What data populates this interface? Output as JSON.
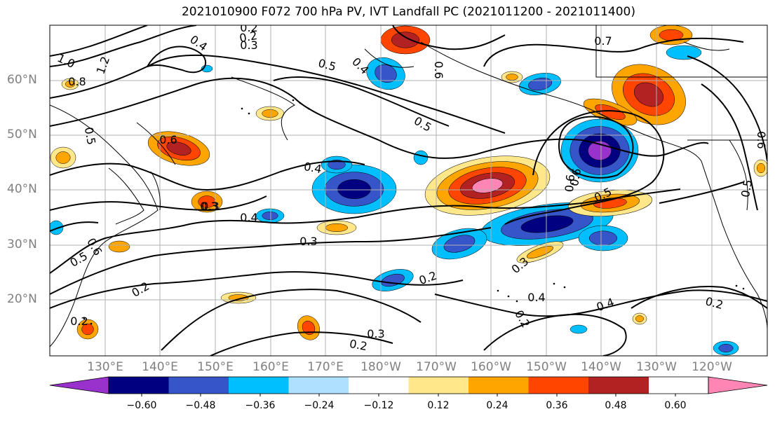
{
  "title": "2021010900 F072 700 hPa PV, IVT Landfall PC (2021011200 - 2021011400)",
  "lat_labels": [
    "60°N",
    "50°N",
    "40°N",
    "30°N",
    "20°N"
  ],
  "lon_labels": [
    "130°E",
    "140°E",
    "150°E",
    "160°E",
    "170°E",
    "180°W",
    "170°W",
    "160°W",
    "150°W",
    "140°W",
    "130°W",
    "120°W"
  ],
  "colorbar": {
    "ticks": [
      "−0.60",
      "−0.48",
      "−0.36",
      "−0.24",
      "−0.12",
      "0.12",
      "0.24",
      "0.36",
      "0.48",
      "0.60"
    ],
    "colors": [
      "#9932cc",
      "#000080",
      "#3655c8",
      "#00bfff",
      "#b0e0ff",
      "#ffffff",
      "#ffe78a",
      "#ffa500",
      "#ff4500",
      "#b22222",
      "#ff85b4"
    ]
  },
  "contour_labels": [
    "0.2",
    "0.3",
    "0.4",
    "1.0",
    "0.8",
    "1.2",
    "0.5",
    "0.6",
    "0.5",
    "0.4",
    "0.3",
    "0.4",
    "0.3",
    "0.6",
    "0.5",
    "0.2",
    "0.3",
    "0.2",
    "0.2",
    "0.3",
    "0.4",
    "0.2",
    "0.4",
    "0.2",
    "0.5",
    "0.6",
    "0.7",
    "0.6",
    "0.4",
    "0.6",
    "0.5",
    "0.5",
    "0.6",
    "0.2",
    "0.3",
    "0.2"
  ]
}
